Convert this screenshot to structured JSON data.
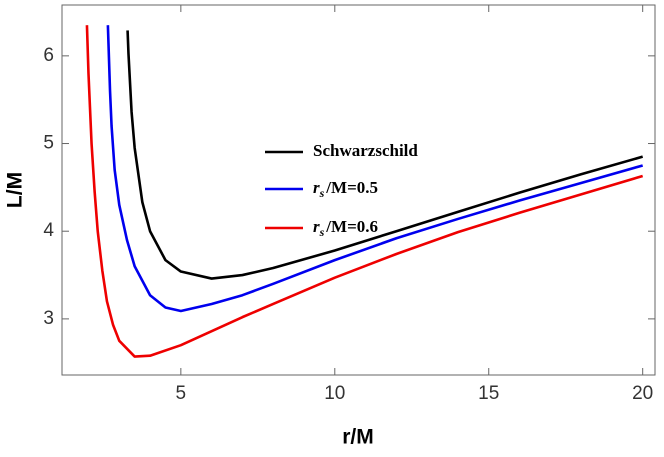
{
  "chart_data": {
    "type": "line",
    "xlabel": "r/M",
    "ylabel": "L/M",
    "xlim": [
      1.14,
      20.4
    ],
    "ylim": [
      2.36,
      6.58
    ],
    "xticks": [
      5,
      10,
      15,
      20
    ],
    "yticks": [
      3,
      4,
      5,
      6
    ],
    "legend": "center",
    "series": [
      {
        "name": "Schwarzschild",
        "color": "#000000",
        "x": [
          3.27,
          3.3,
          3.4,
          3.5,
          3.75,
          4,
          4.5,
          5,
          6,
          7,
          8,
          10,
          12,
          14,
          16,
          18,
          20
        ],
        "values": [
          6.29,
          6.02,
          5.36,
          4.95,
          4.33,
          4,
          3.67,
          3.54,
          3.46,
          3.5,
          3.58,
          3.78,
          4,
          4.22,
          4.44,
          4.65,
          4.85
        ]
      },
      {
        "name": "rs/M=0.5",
        "color": "#0000ee",
        "x": [
          2.63,
          2.7,
          2.75,
          2.85,
          3,
          3.25,
          3.5,
          4,
          4.5,
          5,
          6,
          7,
          8,
          10,
          12,
          14,
          16,
          18,
          20
        ],
        "values": [
          6.35,
          5.6,
          5.2,
          4.7,
          4.3,
          3.9,
          3.6,
          3.27,
          3.13,
          3.09,
          3.17,
          3.27,
          3.4,
          3.67,
          3.92,
          4.14,
          4.35,
          4.55,
          4.75
        ]
      },
      {
        "name": "rs/M=0.6",
        "color": "#ee0000",
        "x": [
          1.95,
          2,
          2.1,
          2.2,
          2.3,
          2.45,
          2.6,
          2.8,
          3,
          3.5,
          4,
          5,
          6,
          7,
          8,
          10,
          12,
          14,
          16,
          18,
          20
        ],
        "values": [
          6.35,
          5.8,
          5.0,
          4.45,
          4.0,
          3.55,
          3.2,
          2.93,
          2.75,
          2.57,
          2.58,
          2.7,
          2.86,
          3.02,
          3.17,
          3.47,
          3.74,
          3.99,
          4.21,
          4.42,
          4.63
        ]
      }
    ]
  }
}
